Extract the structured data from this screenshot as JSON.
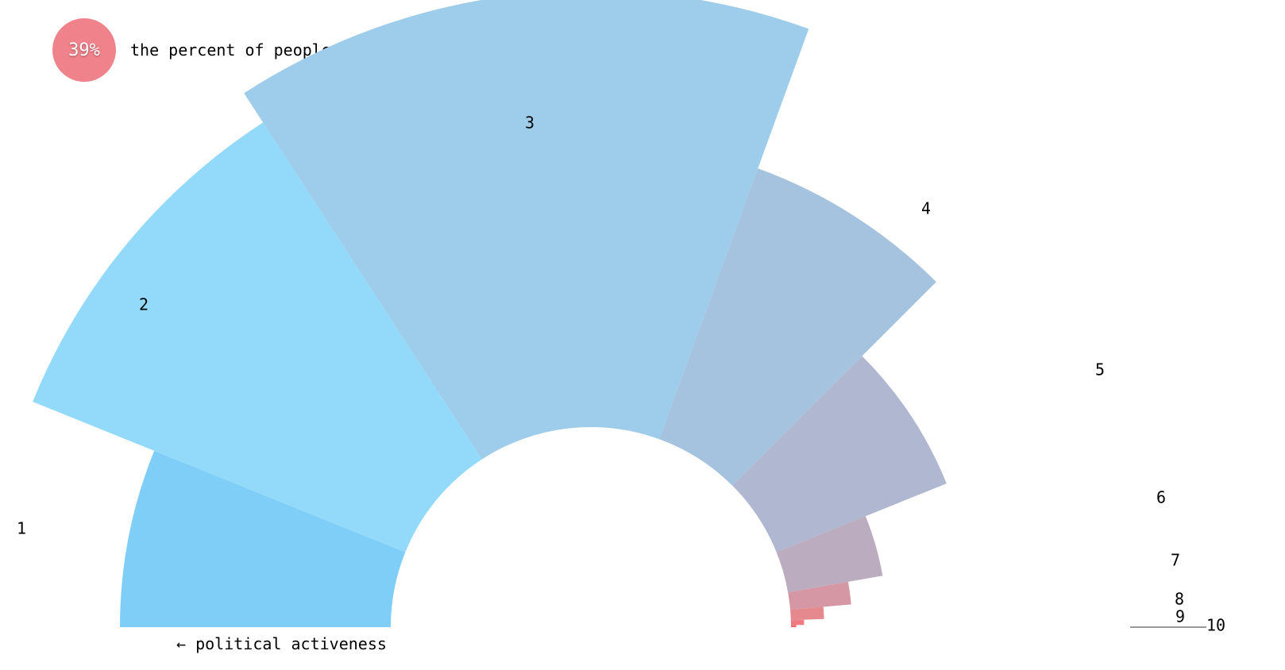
{
  "header": {
    "stat": "39%",
    "description": "the percent of people who said politics was a dealbreaker"
  },
  "chart_data": {
    "type": "polar-bar",
    "axis_label": "← political activeness",
    "categories": [
      "1",
      "2",
      "3",
      "4",
      "5",
      "6",
      "7",
      "8",
      "9",
      "10"
    ],
    "values": [
      3.1,
      4.6,
      5.0,
      3.3,
      2.1,
      1.1,
      0.7,
      0.38,
      0.15,
      0.06
    ],
    "colors": [
      "#7ecef8",
      "#92d9fa",
      "#9dcdeb",
      "#a5c2de",
      "#b0b7d0",
      "#bbacbf",
      "#d497a3",
      "#e6898f",
      "#ee7a82",
      "#ec6b71"
    ]
  }
}
